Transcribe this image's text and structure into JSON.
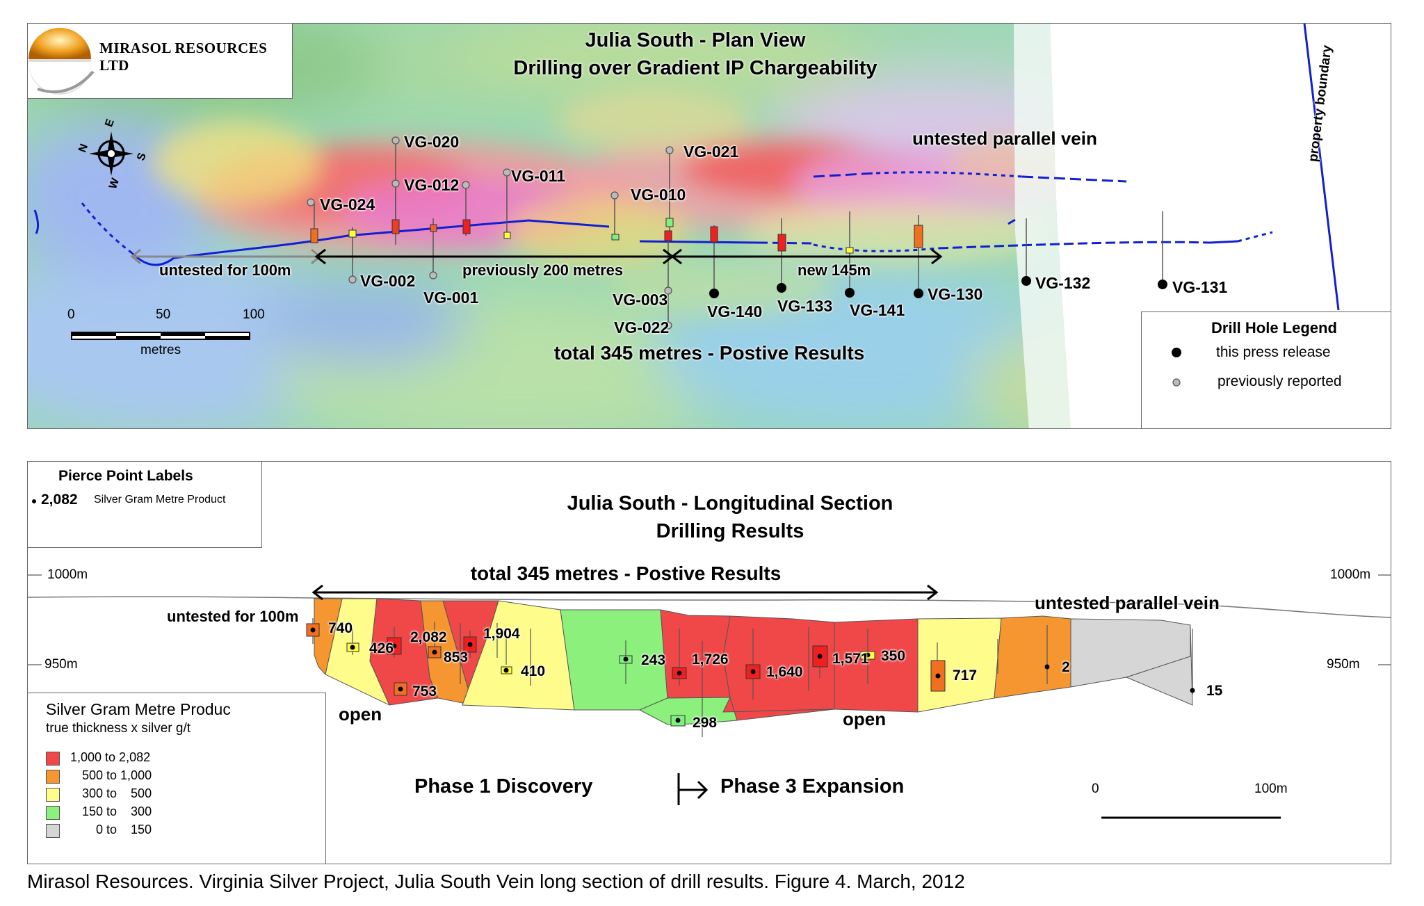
{
  "company": {
    "name": "MIRASOL RESOURCES LTD"
  },
  "plan_view": {
    "title_line1": "Julia South - Plan View",
    "title_line2": "Drilling over Gradient IP Chargeability",
    "compass": {
      "n": "N",
      "e": "E",
      "s": "S",
      "w": "W"
    },
    "property_boundary": "property boundary",
    "untested_parallel_vein": "untested parallel vein",
    "untested_for_100m": "untested for 100m",
    "previously_200": "previously 200 metres",
    "new_145": "new 145m",
    "total": "total 345 metres - Postive Results",
    "scale": {
      "ticks": [
        "0",
        "50",
        "100"
      ],
      "unit": "metres"
    },
    "holes_previous": [
      "VG-024",
      "VG-002",
      "VG-020",
      "VG-012",
      "VG-001",
      "VG-011",
      "VG-010",
      "VG-021",
      "VG-003",
      "VG-022"
    ],
    "holes_new": [
      "VG-140",
      "VG-133",
      "VG-141",
      "VG-130",
      "VG-132",
      "VG-131"
    ],
    "legend": {
      "title": "Drill Hole Legend",
      "new": "this press release",
      "previous": "previously reported"
    }
  },
  "long_section": {
    "pierce_legend": {
      "title": "Pierce Point Labels",
      "example_value": "2,082",
      "example_text": "Silver Gram Metre Product"
    },
    "title_line1": "Julia South - Longitudinal Section",
    "title_line2": "Drilling Results",
    "total": "total 345 metres - Postive Results",
    "untested_for_100m": "untested for 100m",
    "untested_parallel_vein": "untested parallel vein",
    "elevations": {
      "top_left": "1000m",
      "top_right": "1000m",
      "mid_left": "950m",
      "mid_right": "950m"
    },
    "open_left": "open",
    "open_right": "open",
    "phase1": "Phase 1 Discovery",
    "phase3": "Phase 3 Expansion",
    "scale": {
      "left": "0",
      "right": "100m"
    },
    "pierce_values": [
      "740",
      "426",
      "2,082",
      "853",
      "1,904",
      "753",
      "410",
      "243",
      "1,726",
      "1,640",
      "298",
      "1,571",
      "350",
      "717",
      "2",
      "15"
    ],
    "legend": {
      "title": "Silver Gram Metre Produc",
      "subtitle": "true thickness x silver g/t",
      "classes": [
        {
          "label": "1,000 to 2,082",
          "color": "#f04848"
        },
        {
          "label": "500 to 1,000",
          "color": "#f59630"
        },
        {
          "label": "300 to    500",
          "color": "#fefc8a"
        },
        {
          "label": "150 to    300",
          "color": "#8cf07c"
        },
        {
          "label": "0 to    150",
          "color": "#d6d6d6"
        }
      ]
    }
  },
  "caption": "Mirasol Resources. Virginia Silver Project, Julia South Vein long section of drill results. Figure 4. March, 2012",
  "colors": {
    "vein": "#1020d0",
    "high": "#f04848",
    "mid": "#f59630",
    "low": "#fefc8a",
    "lower": "#8cf07c",
    "none": "#d6d6d6"
  }
}
